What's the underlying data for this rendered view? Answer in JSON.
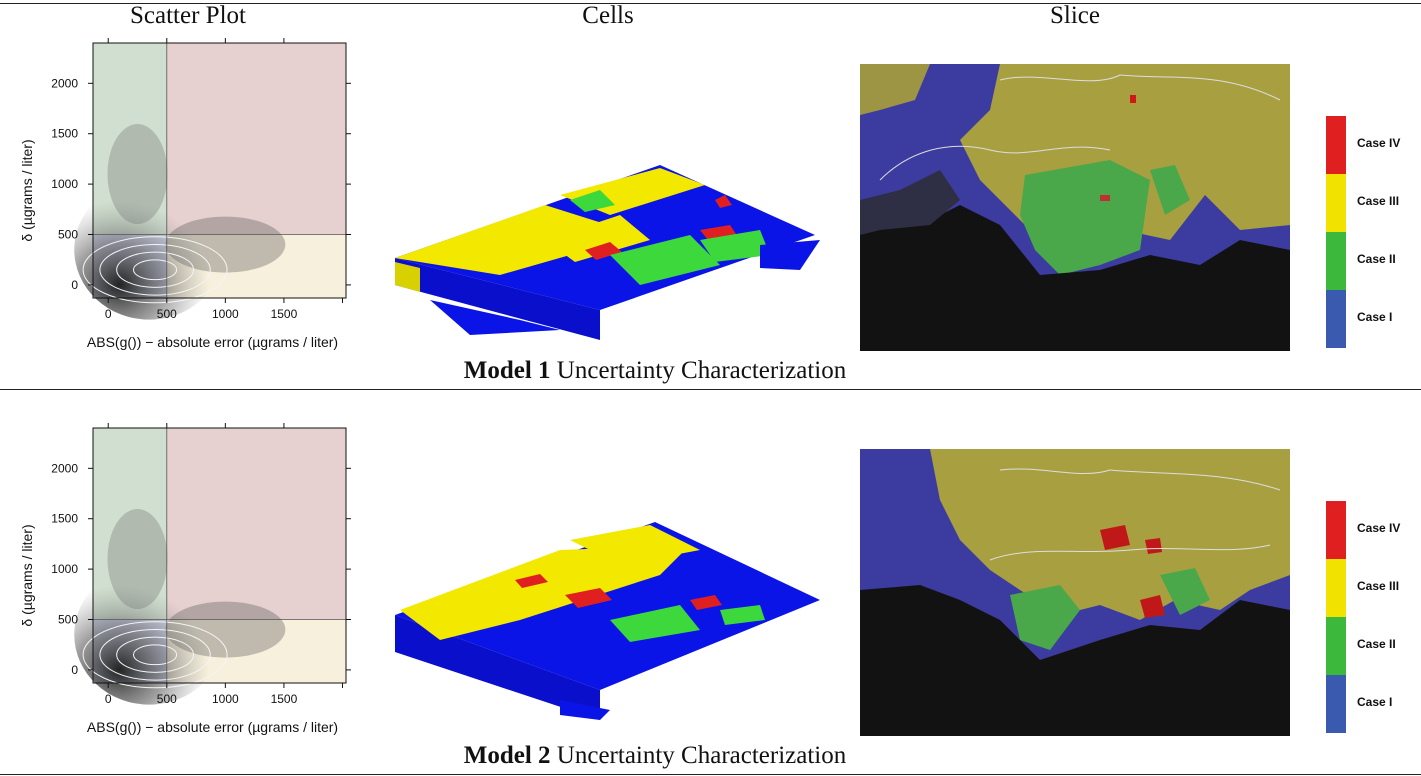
{
  "column_titles": {
    "scatter": "Scatter Plot",
    "cells": "Cells",
    "slice": "Slice"
  },
  "captions": [
    {
      "bold": "Model 1",
      "rest": " Uncertainty Characterization"
    },
    {
      "bold": "Model 2",
      "rest": " Uncertainty Characterization"
    }
  ],
  "legend": {
    "cases": [
      "Case IV",
      "Case III",
      "Case II",
      "Case I"
    ],
    "colors": [
      "#e02020",
      "#f2e200",
      "#3cb83c",
      "#3a5ab0"
    ]
  },
  "chart_data": [
    {
      "type": "scatter",
      "title": "",
      "xlabel": "ABS(g()) − absolute error (µgrams / liter)",
      "ylabel": "δ (µgrams / liter)",
      "xlim": [
        -130,
        2030
      ],
      "ylim": [
        -130,
        2400
      ],
      "xticks": [
        0,
        500,
        1000,
        1500
      ],
      "yticks": [
        0,
        500,
        1000,
        1500,
        2000
      ],
      "thresholds": {
        "x": 500,
        "y": 500
      },
      "regions": [
        {
          "name": "Case I",
          "color": "#8f9ad0"
        },
        {
          "name": "Case II",
          "color": "#8fb38c"
        },
        {
          "name": "Case III",
          "color": "#ecdcab"
        },
        {
          "name": "Case IV",
          "color": "#c49090"
        }
      ]
    },
    {
      "type": "scatter",
      "title": "",
      "xlabel": "ABS(g()) − absolute error (µgrams / liter)",
      "ylabel": "δ (µgrams / liter)",
      "xlim": [
        -130,
        2030
      ],
      "ylim": [
        -130,
        2400
      ],
      "xticks": [
        0,
        500,
        1000,
        1500
      ],
      "yticks": [
        0,
        500,
        1000,
        1500,
        2000
      ],
      "thresholds": {
        "x": 500,
        "y": 500
      },
      "regions": [
        {
          "name": "Case I",
          "color": "#8f9ad0"
        },
        {
          "name": "Case II",
          "color": "#8fb38c"
        },
        {
          "name": "Case III",
          "color": "#ecdcab"
        },
        {
          "name": "Case IV",
          "color": "#c49090"
        }
      ]
    }
  ]
}
